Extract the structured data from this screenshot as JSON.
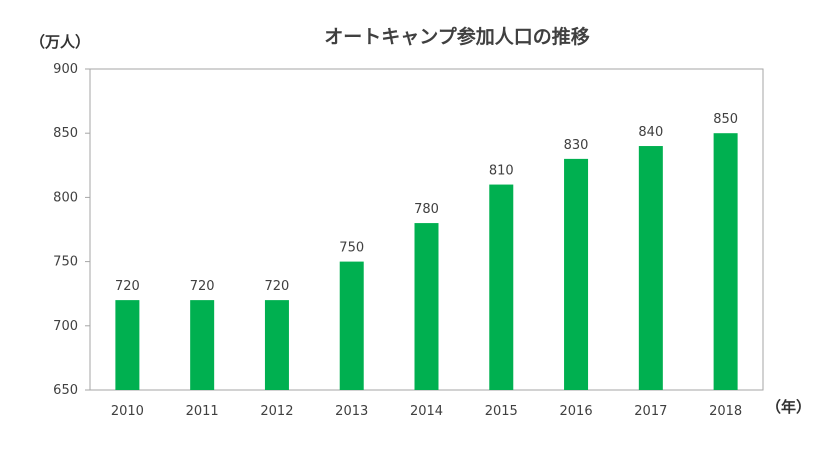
{
  "chart_data": {
    "type": "bar",
    "title": "オートキャンプ参加人口の推移",
    "ylabel": "（万人）",
    "xlabel": "（年）",
    "categories": [
      "2010",
      "2011",
      "2012",
      "2013",
      "2014",
      "2015",
      "2016",
      "2017",
      "2018"
    ],
    "values": [
      720,
      720,
      720,
      750,
      780,
      810,
      830,
      840,
      850
    ],
    "data_labels": [
      "720",
      "720",
      "720",
      "750",
      "780",
      "810",
      "830",
      "840",
      "850"
    ],
    "ylim": [
      650,
      900
    ],
    "yticks": [
      650,
      700,
      750,
      800,
      850,
      900
    ],
    "ytick_labels": [
      "650",
      "700",
      "750",
      "800",
      "850",
      "900"
    ],
    "grid": false,
    "legend": "none",
    "bar_color": "#00b050"
  }
}
